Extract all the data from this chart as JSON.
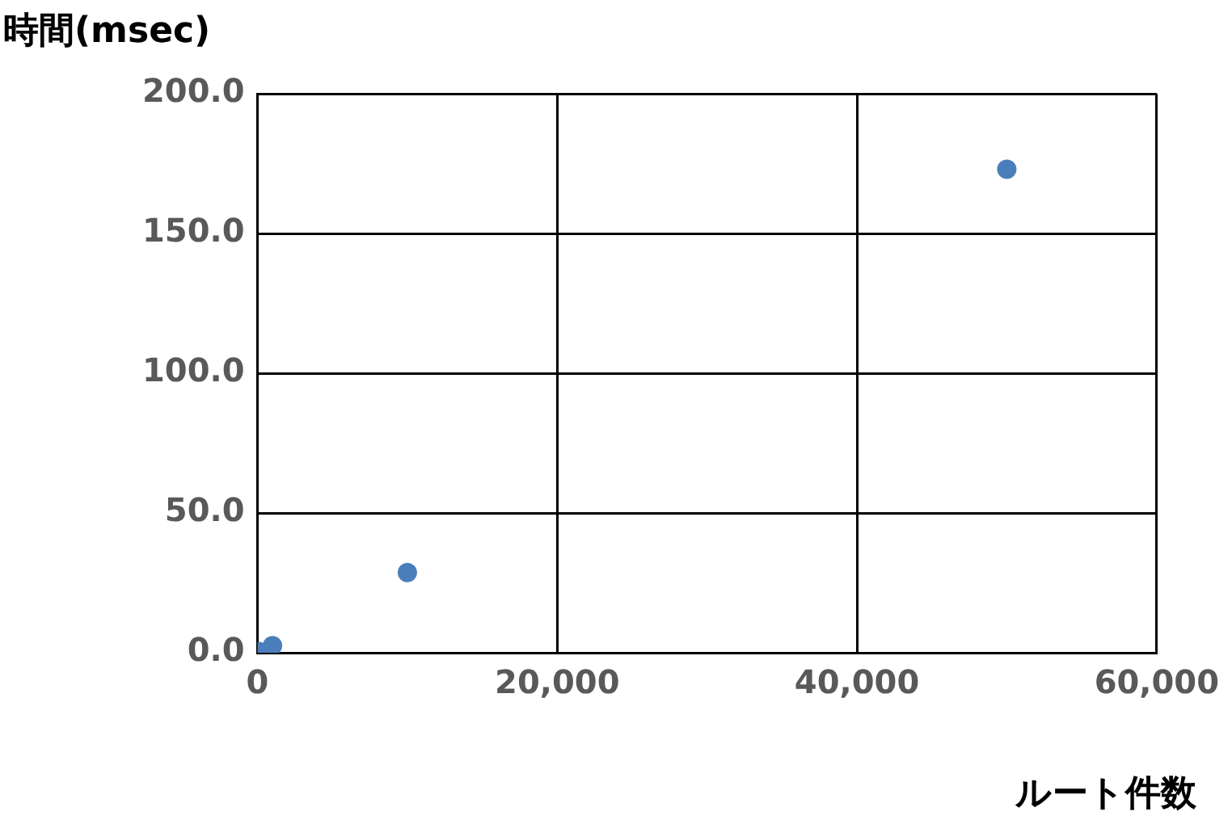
{
  "chart_data": {
    "type": "scatter",
    "xlabel": "ルート件数",
    "ylabel": "時間(msec)",
    "x": [
      100,
      1000,
      10000,
      50000
    ],
    "series": [
      {
        "color": "#4a7ebb",
        "values": [
          0.4,
          2.5,
          28.7,
          173
        ]
      }
    ],
    "xlim": [
      0,
      60000
    ],
    "ylim": [
      0,
      200
    ],
    "xticks": [
      {
        "value": 0,
        "label": "0"
      },
      {
        "value": 20000,
        "label": "20,000"
      },
      {
        "value": 40000,
        "label": "40,000"
      },
      {
        "value": 60000,
        "label": "60,000"
      }
    ],
    "yticks": [
      {
        "value": 0,
        "label": "0.0"
      },
      {
        "value": 50,
        "label": "50.0"
      },
      {
        "value": 100,
        "label": "100.0"
      },
      {
        "value": 150,
        "label": "150.0"
      },
      {
        "value": 200,
        "label": "200.0"
      }
    ],
    "grid": true,
    "legend": false,
    "marker": "circle"
  }
}
